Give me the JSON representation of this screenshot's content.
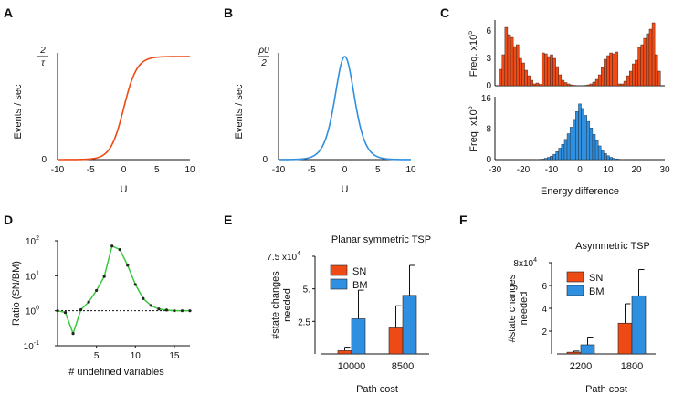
{
  "colors": {
    "sn": "#ee4a16",
    "bm": "#2f8fe0",
    "green": "#3cc83c",
    "axis": "#111111"
  },
  "chart_data": [
    {
      "panel": "A",
      "type": "line",
      "xlabel": "U",
      "ylabel": "Events / sec",
      "xlim": [
        -10,
        10
      ],
      "xticks": [
        "-10",
        "-5",
        "0",
        "5",
        "10"
      ],
      "yticks": [
        {
          "label": "0",
          "value": 0
        }
      ],
      "ytop_label": {
        "num": "2",
        "den": "τ",
        "value": 1
      },
      "series": [
        {
          "name": "sigmoid",
          "color": "#ee4a16",
          "function": "1/(1+exp(-U))"
        }
      ]
    },
    {
      "panel": "B",
      "type": "line",
      "xlabel": "U",
      "ylabel": "Events / sec",
      "xlim": [
        -10,
        10
      ],
      "xticks": [
        "-10",
        "-5",
        "0",
        "5",
        "10"
      ],
      "yticks": [
        {
          "label": "0",
          "value": 0
        }
      ],
      "ytop_label": {
        "num": "ρ0",
        "den": "2",
        "value": 1
      },
      "series": [
        {
          "name": "sigmoid-derivative",
          "color": "#2f8fe0",
          "function": "4*s(U)*(1-s(U))"
        }
      ]
    },
    {
      "panel": "C-top",
      "type": "bar",
      "ylabel": "Freq. x10",
      "ylabel_exp": "5",
      "xlim": [
        -30,
        30
      ],
      "ylim": [
        0,
        7
      ],
      "yticks": [
        {
          "label": "6",
          "value": 6
        },
        {
          "label": "3",
          "value": 3
        },
        {
          "label": "0",
          "value": 0
        }
      ],
      "bin_width": 1,
      "x": [
        -28,
        -27,
        -26,
        -25,
        -24,
        -23,
        -22,
        -21,
        -20,
        -19,
        -18,
        -17,
        -16,
        -15,
        -14,
        -13,
        -12,
        -11,
        -10,
        -9,
        -8,
        -7,
        -6,
        -5,
        -4,
        -3,
        -2,
        -1,
        0,
        1,
        2,
        3,
        4,
        5,
        6,
        7,
        8,
        9,
        10,
        11,
        12,
        13,
        14,
        15,
        16,
        17,
        18,
        19,
        20,
        21,
        22,
        23,
        24,
        25,
        26,
        27,
        28
      ],
      "values": [
        1.8,
        3.4,
        6.4,
        5.6,
        5.3,
        4.3,
        4.5,
        3.0,
        2.5,
        1.7,
        1.1,
        0.6,
        0.2,
        0.3,
        0.15,
        3.6,
        3.5,
        3.2,
        3.4,
        3.0,
        2.1,
        1.2,
        0.6,
        0.35,
        0.2,
        0.1,
        0.05,
        0.03,
        0.02,
        0.03,
        0.05,
        0.1,
        0.2,
        0.4,
        0.7,
        1.2,
        2.0,
        2.9,
        3.3,
        3.6,
        3.5,
        3.7,
        0.2,
        0.2,
        0.5,
        1.1,
        1.6,
        2.4,
        2.8,
        4.2,
        4.5,
        5.2,
        5.7,
        6.2,
        6.9,
        3.4,
        1.6
      ],
      "color": "#ee4a16"
    },
    {
      "panel": "C-bottom",
      "type": "bar",
      "ylabel": "Freq. x10",
      "ylabel_exp": "5",
      "xlabel": "Energy difference",
      "xlim": [
        -30,
        30
      ],
      "ylim": [
        0,
        16
      ],
      "xticks": [
        "-30",
        "-20",
        "-10",
        "0",
        "10",
        "20",
        "30"
      ],
      "yticks": [
        {
          "label": "16",
          "value": 16
        },
        {
          "label": "8",
          "value": 8
        },
        {
          "label": "0",
          "value": 0
        }
      ],
      "bin_width": 1,
      "x": [
        -15,
        -14,
        -13,
        -12,
        -11,
        -10,
        -9,
        -8,
        -7,
        -6,
        -5,
        -4,
        -3,
        -2,
        -1,
        0,
        1,
        2,
        3,
        4,
        5,
        6,
        7,
        8,
        9,
        10,
        11,
        12,
        13,
        14,
        15
      ],
      "values": [
        0.05,
        0.1,
        0.2,
        0.35,
        0.6,
        0.9,
        1.4,
        2.1,
        3.0,
        4.0,
        5.3,
        6.8,
        8.5,
        10.3,
        12.6,
        14.6,
        13.4,
        11.6,
        10.0,
        8.3,
        6.6,
        5.0,
        3.6,
        2.4,
        1.6,
        1.0,
        0.6,
        0.35,
        0.2,
        0.1,
        0.05
      ],
      "color": "#2f8fe0"
    },
    {
      "panel": "D",
      "type": "line",
      "xlabel": "# undefined variables",
      "ylabel": "Ratio (SN/BM)",
      "xlim": [
        0,
        17
      ],
      "yscale": "log",
      "ylim_exp": [
        -1,
        2
      ],
      "xticks": [
        "5",
        "10",
        "15"
      ],
      "yticks_exp": [
        {
          "base": "10",
          "exp": "2",
          "value": 2
        },
        {
          "base": "10",
          "exp": "1",
          "value": 1
        },
        {
          "base": "10",
          "exp": "0",
          "value": 0
        },
        {
          "base": "10",
          "exp": "-1",
          "value": -1
        }
      ],
      "reference_line": 1,
      "x": [
        0,
        1,
        2,
        3,
        4,
        5,
        6,
        7,
        8,
        9,
        10,
        11,
        12,
        13,
        14,
        15,
        16,
        17
      ],
      "log10_ratio": [
        0.0,
        -0.05,
        -0.65,
        0.03,
        0.25,
        0.58,
        0.98,
        1.85,
        1.75,
        1.3,
        0.75,
        0.35,
        0.15,
        0.05,
        0.02,
        0.0,
        0.0,
        0.0
      ],
      "color": "#3cc83c"
    },
    {
      "panel": "E",
      "type": "bar",
      "title": "Planar symmetric TSP",
      "xlabel": "Path cost",
      "ylabel": "#state changes\nneeded",
      "ylim": [
        0,
        75000
      ],
      "ytop_label": "7.5 x10",
      "ytop_exp": "4",
      "yticks": [
        {
          "label": "5.",
          "value": 50000
        },
        {
          "label": "2.5",
          "value": 25000
        }
      ],
      "categories": [
        "10000",
        "8500"
      ],
      "series": [
        {
          "name": "SN",
          "color": "#ee4a16",
          "values": [
            2500,
            20000
          ],
          "errors": [
            2000,
            17000
          ]
        },
        {
          "name": "BM",
          "color": "#2f8fe0",
          "values": [
            27000,
            45000
          ],
          "errors": [
            22000,
            23000
          ]
        }
      ],
      "legend": [
        "SN",
        "BM"
      ]
    },
    {
      "panel": "F",
      "type": "bar",
      "title": "Asymmetric TSP",
      "xlabel": "Path cost",
      "ylabel": "#state changes\nneeded",
      "ylim": [
        0,
        80000
      ],
      "ytop_label": "8x10",
      "ytop_exp": "4",
      "yticks": [
        {
          "label": "6",
          "value": 60000
        },
        {
          "label": "4",
          "value": 40000
        },
        {
          "label": "2",
          "value": 20000
        }
      ],
      "categories": [
        "2200",
        "1800"
      ],
      "series": [
        {
          "name": "SN",
          "color": "#ee4a16",
          "values": [
            1500,
            27000
          ],
          "errors": [
            1000,
            17000
          ]
        },
        {
          "name": "BM",
          "color": "#2f8fe0",
          "values": [
            8000,
            51000
          ],
          "errors": [
            6000,
            23000
          ]
        }
      ],
      "legend": [
        "SN",
        "BM"
      ]
    }
  ]
}
